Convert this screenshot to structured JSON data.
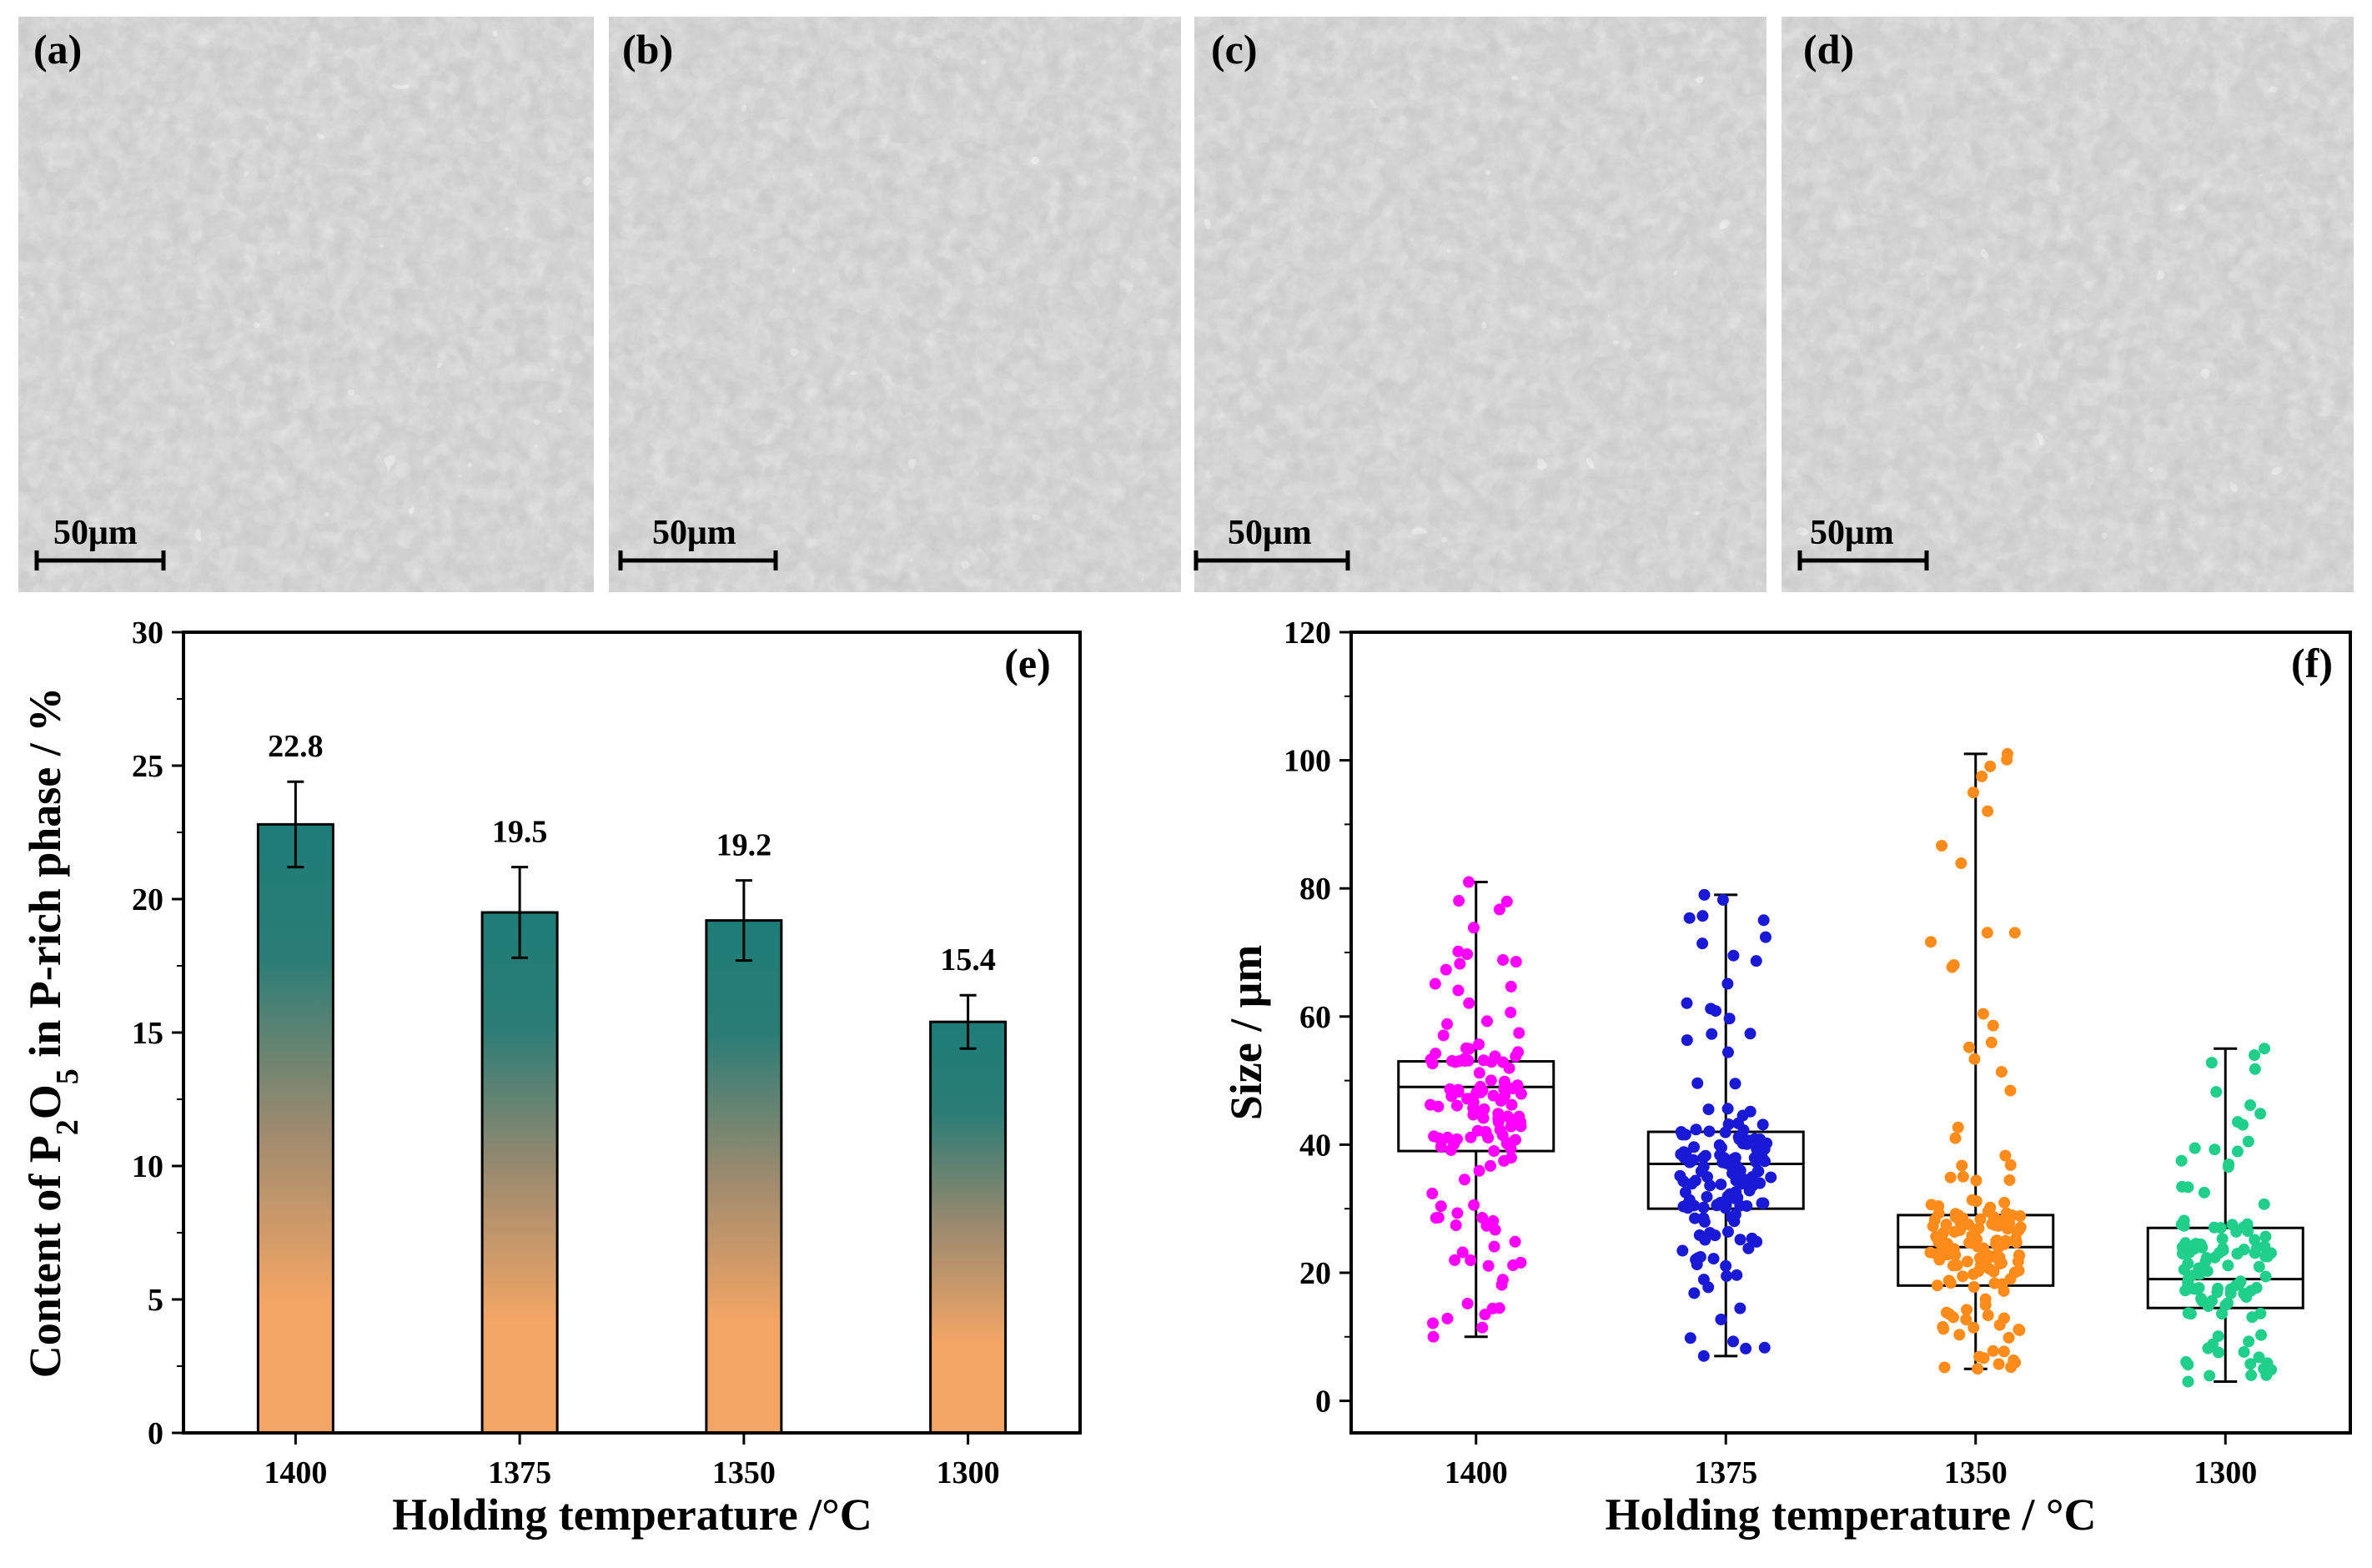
{
  "micrographs": [
    {
      "label": "(a)",
      "scale_bar": "50μm"
    },
    {
      "label": "(b)",
      "scale_bar": "50μm"
    },
    {
      "label": "(c)",
      "scale_bar": "50μm"
    },
    {
      "label": "(d)",
      "scale_bar": "50μm"
    }
  ],
  "chart_data": [
    {
      "type": "bar",
      "panel_label": "(e)",
      "categories": [
        "1400",
        "1375",
        "1350",
        "1300"
      ],
      "values": [
        22.8,
        19.5,
        19.2,
        15.4
      ],
      "value_labels": [
        "22.8",
        "19.5",
        "19.2",
        "15.4"
      ],
      "errors": [
        1.6,
        1.7,
        1.5,
        1.0
      ],
      "ylabel": "Content of P2O5 in P-rich phase / %",
      "ylabel_parts": {
        "a": "Content of P",
        "sub1": "2",
        "b": "O",
        "sub2": "5",
        "c": " in P-rich phase / %"
      },
      "xlabel": "Holding temperature /°C",
      "ylim": [
        0,
        30
      ],
      "yticks": [
        "0",
        "5",
        "10",
        "15",
        "20",
        "25",
        "30"
      ],
      "gradient": {
        "top": "#1e7d78",
        "bottom": "#f2a564"
      }
    },
    {
      "type": "box",
      "panel_label": "(f)",
      "categories": [
        "1400",
        "1375",
        "1350",
        "1300"
      ],
      "ylabel": "Size / μm",
      "xlabel": "Holding temperature / °C",
      "ylim": [
        -5,
        120
      ],
      "yticks": [
        "0",
        "20",
        "40",
        "60",
        "80",
        "100",
        "120"
      ],
      "series": [
        {
          "name": "1400",
          "color": "#ff00ff",
          "whisker_low": 10,
          "q1": 39,
          "median": 49,
          "q3": 53,
          "whisker_high": 81,
          "n_points": 130,
          "seed": 11
        },
        {
          "name": "1375",
          "color": "#1a1ad6",
          "whisker_low": 7,
          "q1": 30,
          "median": 37,
          "q3": 42,
          "whisker_high": 79,
          "n_points": 150,
          "seed": 23
        },
        {
          "name": "1350",
          "color": "#ff8c1a",
          "whisker_low": 5,
          "q1": 18,
          "median": 24,
          "q3": 29,
          "whisker_high": 101,
          "n_points": 150,
          "seed": 37
        },
        {
          "name": "1300",
          "color": "#1fcf8a",
          "whisker_low": 3,
          "q1": 14.5,
          "median": 19,
          "q3": 27,
          "whisker_high": 55,
          "n_points": 110,
          "seed": 53
        }
      ]
    }
  ]
}
